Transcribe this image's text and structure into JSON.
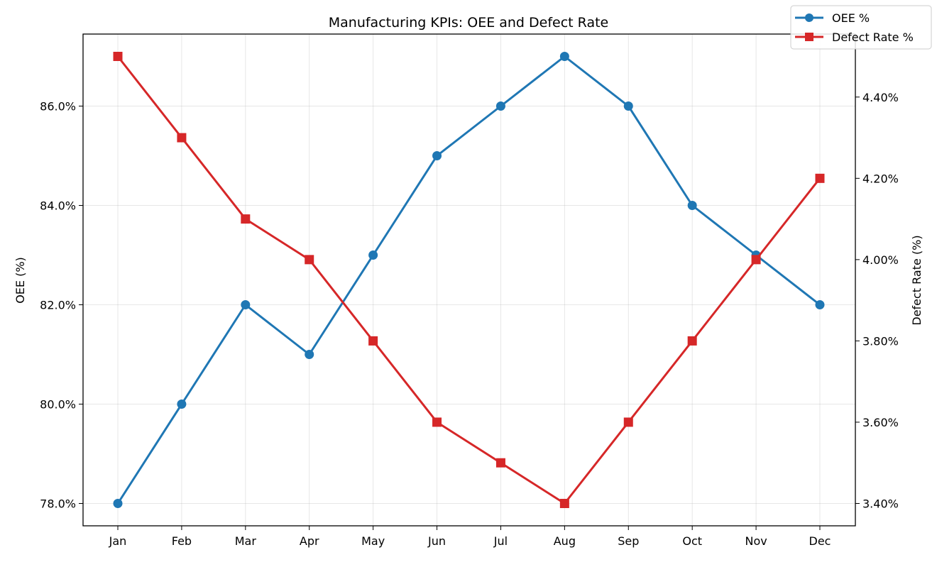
{
  "chart_data": {
    "type": "line",
    "title": "Manufacturing KPIs: OEE and Defect Rate",
    "categories": [
      "Jan",
      "Feb",
      "Mar",
      "Apr",
      "May",
      "Jun",
      "Jul",
      "Aug",
      "Sep",
      "Oct",
      "Nov",
      "Dec"
    ],
    "left_axis": {
      "label": "OEE (%)",
      "ylim": [
        77.55,
        87.45
      ],
      "ticks": [
        78,
        80,
        82,
        84,
        86
      ],
      "tick_labels": [
        "78.0%",
        "80.0%",
        "82.0%",
        "84.0%",
        "86.0%"
      ]
    },
    "right_axis": {
      "label": "Defect Rate (%)",
      "ylim": [
        3.345,
        4.555
      ],
      "ticks": [
        3.4,
        3.6,
        3.8,
        4.0,
        4.2,
        4.4
      ],
      "tick_labels": [
        "3.40%",
        "3.60%",
        "3.80%",
        "4.00%",
        "4.20%",
        "4.40%"
      ]
    },
    "series": [
      {
        "name": "OEE %",
        "axis": "left",
        "marker": "circle",
        "color": "#1f77b4",
        "values": [
          78,
          80,
          82,
          81,
          83,
          85,
          86,
          87,
          86,
          84,
          83,
          82
        ]
      },
      {
        "name": "Defect Rate %",
        "axis": "right",
        "marker": "square",
        "color": "#d62728",
        "values": [
          4.5,
          4.3,
          4.1,
          4.0,
          3.8,
          3.6,
          3.5,
          3.4,
          3.6,
          3.8,
          4.0,
          4.2
        ]
      }
    ],
    "grid": true,
    "legend": "top-right"
  }
}
